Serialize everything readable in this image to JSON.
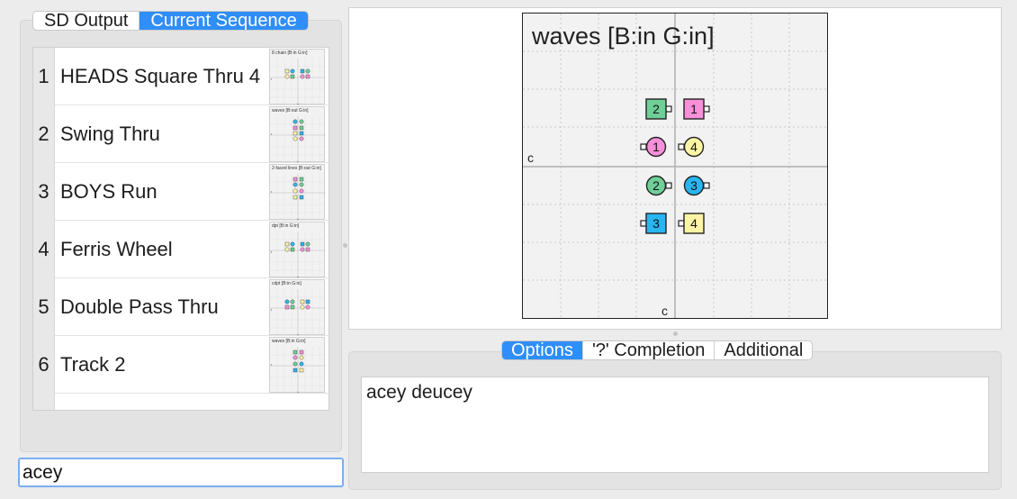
{
  "left_tabs": [
    {
      "label": "SD Output",
      "active": false
    },
    {
      "label": "Current Sequence",
      "active": true
    }
  ],
  "sequence": [
    {
      "num": "1",
      "call": "HEADS Square Thru 4",
      "thumb_title": "8 chain [B:in G:in]"
    },
    {
      "num": "2",
      "call": "Swing Thru",
      "thumb_title": "waves [B:out G:in]"
    },
    {
      "num": "3",
      "call": "BOYS Run",
      "thumb_title": "2-faced lines [B:out G:in]"
    },
    {
      "num": "4",
      "call": "Ferris Wheel",
      "thumb_title": "dpt [B:in G:in]"
    },
    {
      "num": "5",
      "call": "Double Pass Thru",
      "thumb_title": "cdpt [B:in G:in]"
    },
    {
      "num": "6",
      "call": "Track 2",
      "thumb_title": "waves [B:in G:in]"
    }
  ],
  "input": {
    "value": "acey"
  },
  "diagram": {
    "title": "waves [B:in G:in]",
    "caller_left": "c",
    "caller_bottom": "c",
    "dancers": [
      {
        "label": "2",
        "shape": "square",
        "color": "#6fcf97",
        "facing": "right"
      },
      {
        "label": "1",
        "shape": "square",
        "color": "#f88fd9",
        "facing": "right"
      },
      {
        "label": "1",
        "shape": "circle",
        "color": "#f88fd9",
        "facing": "left"
      },
      {
        "label": "4",
        "shape": "circle",
        "color": "#fdf5a5",
        "facing": "left"
      },
      {
        "label": "2",
        "shape": "circle",
        "color": "#6fcf97",
        "facing": "right"
      },
      {
        "label": "3",
        "shape": "circle",
        "color": "#29b6f0",
        "facing": "right"
      },
      {
        "label": "3",
        "shape": "square",
        "color": "#29b6f0",
        "facing": "left"
      },
      {
        "label": "4",
        "shape": "square",
        "color": "#fdf5a5",
        "facing": "left"
      }
    ]
  },
  "right_tabs": [
    {
      "label": "Options",
      "active": true
    },
    {
      "label": "'?' Completion",
      "active": false
    },
    {
      "label": "Additional",
      "active": false
    }
  ],
  "options": [
    "acey deucey"
  ],
  "colors": {
    "accent": "#2f8ef7",
    "boy1_girl1": "#f88fd9",
    "couple2": "#6fcf97",
    "couple3": "#29b6f0",
    "couple4": "#fdf5a5"
  }
}
